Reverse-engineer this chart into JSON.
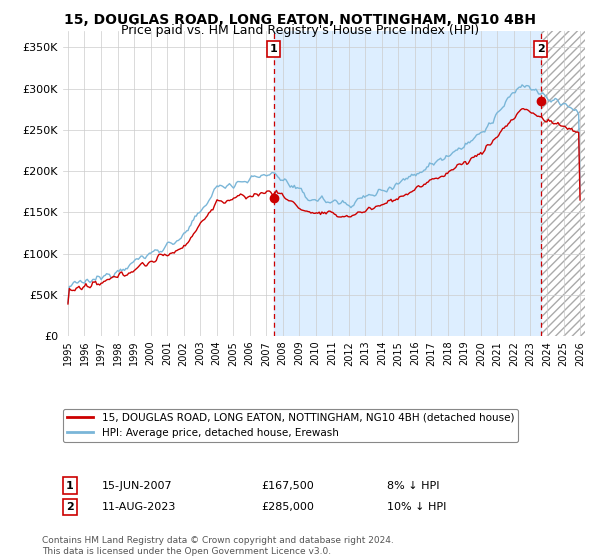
{
  "title": "15, DOUGLAS ROAD, LONG EATON, NOTTINGHAM, NG10 4BH",
  "subtitle": "Price paid vs. HM Land Registry's House Price Index (HPI)",
  "ytick_values": [
    0,
    50000,
    100000,
    150000,
    200000,
    250000,
    300000,
    350000
  ],
  "ylim": [
    0,
    370000
  ],
  "xlim_start": 1994.7,
  "xlim_end": 2026.3,
  "hpi_color": "#7ab6d8",
  "price_color": "#cc0000",
  "vline_color": "#cc0000",
  "shade_color": "#ddeeff",
  "marker1_date": 2007.46,
  "marker1_price": 167500,
  "marker2_date": 2023.62,
  "marker2_price": 285000,
  "annotation1": "1",
  "annotation2": "2",
  "legend_label1": "15, DOUGLAS ROAD, LONG EATON, NOTTINGHAM, NG10 4BH (detached house)",
  "legend_label2": "HPI: Average price, detached house, Erewash",
  "note1_label": "1",
  "note1_date": "15-JUN-2007",
  "note1_price": "£167,500",
  "note1_hpi": "8% ↓ HPI",
  "note2_label": "2",
  "note2_date": "11-AUG-2023",
  "note2_price": "£285,000",
  "note2_hpi": "10% ↓ HPI",
  "footer": "Contains HM Land Registry data © Crown copyright and database right 2024.\nThis data is licensed under the Open Government Licence v3.0.",
  "background_color": "#ffffff",
  "grid_color": "#cccccc",
  "title_fontsize": 10,
  "subtitle_fontsize": 9
}
